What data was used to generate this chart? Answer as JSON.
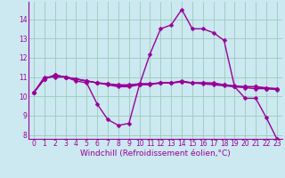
{
  "background_color": "#cce8f0",
  "grid_color": "#99ccbb",
  "line_color": "#990099",
  "marker": "D",
  "marker_size": 2.5,
  "linewidth": 1.0,
  "xlim": [
    -0.5,
    23.5
  ],
  "ylim": [
    7.8,
    14.9
  ],
  "yticks": [
    8,
    9,
    10,
    11,
    12,
    13,
    14
  ],
  "xticks": [
    0,
    1,
    2,
    3,
    4,
    5,
    6,
    7,
    8,
    9,
    10,
    11,
    12,
    13,
    14,
    15,
    16,
    17,
    18,
    19,
    20,
    21,
    22,
    23
  ],
  "xlabel": "Windchill (Refroidissement éolien,°C)",
  "xlabel_fontsize": 6.5,
  "tick_fontsize": 5.5,
  "series": [
    [
      10.2,
      11.0,
      11.0,
      11.0,
      10.8,
      10.7,
      9.6,
      8.8,
      8.5,
      8.6,
      10.6,
      12.2,
      13.5,
      13.7,
      14.5,
      13.5,
      13.5,
      13.3,
      12.9,
      10.5,
      9.9,
      9.9,
      8.9,
      7.8
    ],
    [
      10.2,
      10.9,
      11.1,
      11.0,
      10.9,
      10.8,
      10.7,
      10.6,
      10.5,
      10.5,
      10.6,
      10.6,
      10.7,
      10.7,
      10.8,
      10.7,
      10.7,
      10.7,
      10.6,
      10.5,
      10.5,
      10.5,
      10.4,
      10.4
    ],
    [
      10.2,
      10.9,
      11.1,
      11.0,
      10.9,
      10.8,
      10.7,
      10.65,
      10.55,
      10.55,
      10.65,
      10.65,
      10.7,
      10.7,
      10.75,
      10.7,
      10.7,
      10.65,
      10.6,
      10.55,
      10.5,
      10.5,
      10.45,
      10.4
    ],
    [
      10.2,
      10.9,
      11.1,
      11.0,
      10.9,
      10.8,
      10.7,
      10.65,
      10.6,
      10.6,
      10.65,
      10.65,
      10.7,
      10.7,
      10.75,
      10.7,
      10.65,
      10.6,
      10.55,
      10.5,
      10.45,
      10.4,
      10.4,
      10.35
    ]
  ]
}
